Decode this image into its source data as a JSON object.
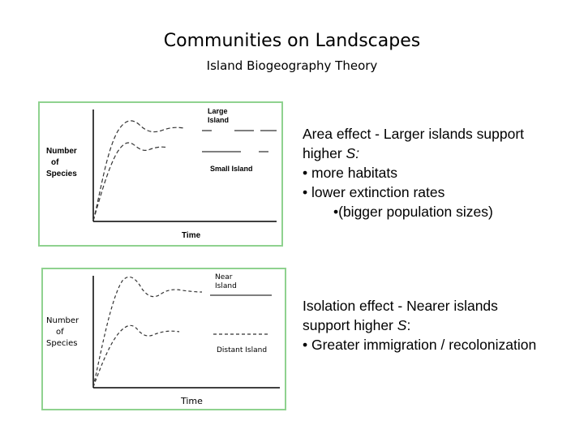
{
  "header": {
    "title": "Communities on Landscapes",
    "subtitle": "Island Biogeography Theory"
  },
  "figure_area": {
    "ylabel_lines": [
      "Number",
      "of",
      "Species"
    ],
    "xlabel": "Time",
    "curve_top_label_lines": [
      "Large",
      "Island"
    ],
    "curve_bottom_label": "Small Island"
  },
  "figure_isolation": {
    "ylabel_lines": [
      "Number",
      "of",
      "Species"
    ],
    "xlabel": "Time",
    "curve_top_label_lines": [
      "Near",
      "Island"
    ],
    "curve_bottom_label": "Distant Island"
  },
  "area_effect": {
    "heading": "Area effect - Larger islands support",
    "heading2_prefix": "higher ",
    "heading2_symbol": "S:",
    "bullets": [
      "•  more habitats",
      "•  lower extinction rates"
    ],
    "sub_bullet": "•(bigger population sizes)"
  },
  "isolation_effect": {
    "heading": "Isolation effect - Nearer islands",
    "heading2_prefix": "support higher ",
    "heading2_symbol": "S",
    "heading2_suffix": ":",
    "bullet": "• Greater immigration / recolonization"
  }
}
